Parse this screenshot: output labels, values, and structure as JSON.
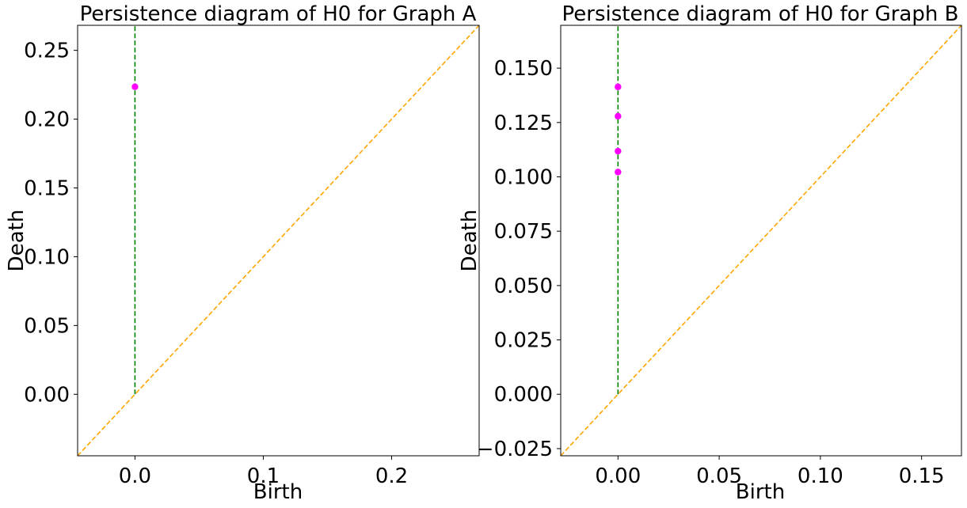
{
  "chart_data": [
    {
      "type": "scatter",
      "title": "Persistence diagram of H0 for Graph A",
      "xlabel": "Birth",
      "ylabel": "Death",
      "xlim": [
        -0.0447,
        0.2682
      ],
      "ylim": [
        -0.0447,
        0.2682
      ],
      "xticks": [
        0.0,
        0.1,
        0.2
      ],
      "xtick_labels": [
        "0.0",
        "0.1",
        "0.2"
      ],
      "yticks": [
        0.0,
        0.05,
        0.1,
        0.15,
        0.2,
        0.25
      ],
      "ytick_labels": [
        "0.00",
        "0.05",
        "0.10",
        "0.15",
        "0.20",
        "0.25"
      ],
      "points": [
        {
          "birth": 0.0,
          "death": 0.2235
        }
      ],
      "vertical_line_x": 0.0,
      "diagonal": true,
      "grid": false,
      "colors": {
        "points": "#ff00ff",
        "vertical_line": "#008000",
        "diagonal": "#ffa500"
      }
    },
    {
      "type": "scatter",
      "title": "Persistence diagram of H0 for Graph B",
      "xlabel": "Birth",
      "ylabel": "Death",
      "xlim": [
        -0.0283,
        0.1697
      ],
      "ylim": [
        -0.0283,
        0.1697
      ],
      "xticks": [
        0.0,
        0.05,
        0.1,
        0.15
      ],
      "xtick_labels": [
        "0.00",
        "0.05",
        "0.10",
        "0.15"
      ],
      "yticks": [
        -0.025,
        0.0,
        0.025,
        0.05,
        0.075,
        0.1,
        0.125,
        0.15
      ],
      "ytick_labels": [
        "−0.025",
        "0.000",
        "0.025",
        "0.050",
        "0.075",
        "0.100",
        "0.125",
        "0.150"
      ],
      "points": [
        {
          "birth": 0.0,
          "death": 0.1414
        },
        {
          "birth": 0.0,
          "death": 0.1279
        },
        {
          "birth": 0.0,
          "death": 0.1118
        },
        {
          "birth": 0.0,
          "death": 0.1022
        }
      ],
      "vertical_line_x": 0.0,
      "diagonal": true,
      "grid": false,
      "colors": {
        "points": "#ff00ff",
        "vertical_line": "#008000",
        "diagonal": "#ffa500"
      }
    }
  ]
}
